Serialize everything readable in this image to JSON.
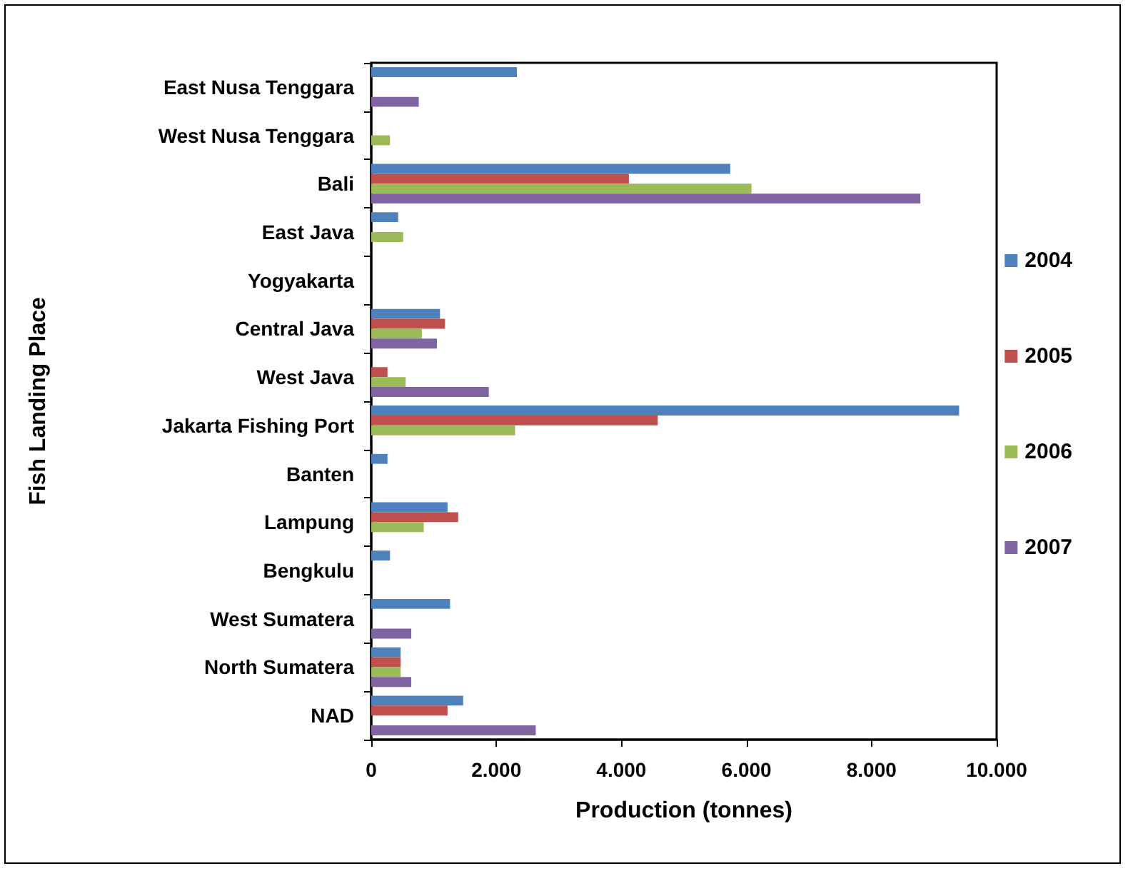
{
  "chart_data": {
    "type": "bar",
    "orientation": "horizontal",
    "xlabel": "Production (tonnes)",
    "ylabel": "Fish Landing Place",
    "categories": [
      "East Nusa Tenggara",
      "West Nusa Tenggara",
      "Bali",
      "East Java",
      "Yogyakarta",
      "Central Java",
      "West Java",
      "Jakarta Fishing Port",
      "Banten",
      "Lampung",
      "Bengkulu",
      "West Sumatera",
      "North Sumatera",
      "NAD"
    ],
    "series": [
      {
        "name": "2004",
        "color": "#4f81bd",
        "values": [
          2330,
          null,
          5740,
          430,
          null,
          1100,
          null,
          9400,
          260,
          1220,
          300,
          1260,
          470,
          1470
        ]
      },
      {
        "name": "2005",
        "color": "#c0504d",
        "values": [
          null,
          null,
          4120,
          null,
          null,
          1180,
          260,
          4580,
          null,
          1390,
          null,
          null,
          470,
          1220
        ]
      },
      {
        "name": "2006",
        "color": "#9bbb59",
        "values": [
          null,
          300,
          6080,
          510,
          null,
          810,
          550,
          2300,
          null,
          840,
          null,
          null,
          470,
          null
        ]
      },
      {
        "name": "2007",
        "color": "#8064a2",
        "values": [
          760,
          null,
          8780,
          null,
          null,
          1050,
          1880,
          null,
          null,
          null,
          null,
          640,
          640,
          2630
        ]
      }
    ],
    "xlim": [
      0,
      10000
    ],
    "xticks": [
      {
        "value": 0,
        "label": "0"
      },
      {
        "value": 2000,
        "label": "2.000"
      },
      {
        "value": 4000,
        "label": "4.000"
      },
      {
        "value": 6000,
        "label": "6.000"
      },
      {
        "value": 8000,
        "label": "8.000"
      },
      {
        "value": 10000,
        "label": "10.000"
      }
    ],
    "grid": false,
    "legend": "right"
  }
}
